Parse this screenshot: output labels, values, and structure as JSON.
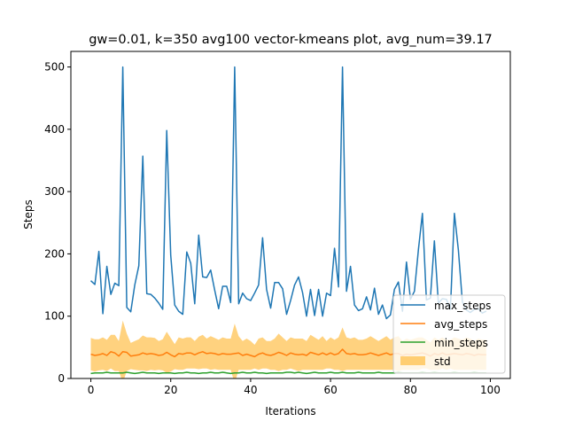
{
  "chart_data": {
    "type": "line",
    "title": "gw=0.01, k=350 avg100 vector-kmeans plot, avg_num=39.17",
    "xlabel": "Iterations",
    "ylabel": "Steps",
    "xlim": [
      -5,
      105
    ],
    "ylim": [
      0,
      525
    ],
    "xticks": [
      0,
      20,
      40,
      60,
      80,
      100
    ],
    "yticks": [
      0,
      100,
      200,
      300,
      400,
      500
    ],
    "grid": false,
    "legend_position": "bottom-right",
    "x": [
      0,
      1,
      2,
      3,
      4,
      5,
      6,
      7,
      8,
      9,
      10,
      11,
      12,
      13,
      14,
      15,
      16,
      17,
      18,
      19,
      20,
      21,
      22,
      23,
      24,
      25,
      26,
      27,
      28,
      29,
      30,
      31,
      32,
      33,
      34,
      35,
      36,
      37,
      38,
      39,
      40,
      41,
      42,
      43,
      44,
      45,
      46,
      47,
      48,
      49,
      50,
      51,
      52,
      53,
      54,
      55,
      56,
      57,
      58,
      59,
      60,
      61,
      62,
      63,
      64,
      65,
      66,
      67,
      68,
      69,
      70,
      71,
      72,
      73,
      74,
      75,
      76,
      77,
      78,
      79,
      80,
      81,
      82,
      83,
      84,
      85,
      86,
      87,
      88,
      89,
      90,
      91,
      92,
      93,
      94,
      95,
      96,
      97,
      98,
      99
    ],
    "series": [
      {
        "name": "max_steps",
        "color": "#1f77b4",
        "values": [
          157,
          151,
          204,
          104,
          180,
          135,
          153,
          149,
          500,
          114,
          107,
          150,
          181,
          357,
          136,
          135,
          129,
          121,
          111,
          398,
          198,
          118,
          108,
          103,
          203,
          185,
          120,
          230,
          163,
          162,
          174,
          142,
          112,
          148,
          148,
          122,
          500,
          120,
          137,
          128,
          125,
          137,
          150,
          226,
          143,
          113,
          154,
          154,
          144,
          103,
          125,
          150,
          163,
          138,
          100,
          143,
          101,
          143,
          100,
          137,
          133,
          209,
          147,
          500,
          140,
          180,
          118,
          109,
          112,
          131,
          110,
          145,
          103,
          118,
          96,
          102,
          143,
          155,
          108,
          187,
          127,
          140,
          207,
          265,
          126,
          129,
          221,
          121,
          128,
          127,
          111,
          265,
          206,
          123,
          110,
          106,
          111,
          112,
          105,
          108
        ]
      },
      {
        "name": "avg_steps",
        "color": "#ff7f0e",
        "values": [
          39,
          37,
          38,
          40,
          37,
          43,
          41,
          36,
          43,
          42,
          36,
          37,
          38,
          41,
          39,
          40,
          39,
          37,
          38,
          42,
          38,
          35,
          40,
          39,
          41,
          41,
          38,
          41,
          43,
          40,
          41,
          40,
          38,
          40,
          39,
          39,
          40,
          41,
          37,
          39,
          37,
          35,
          39,
          41,
          38,
          37,
          39,
          42,
          40,
          37,
          41,
          39,
          38,
          39,
          37,
          42,
          40,
          38,
          41,
          38,
          41,
          38,
          40,
          47,
          40,
          39,
          40,
          38,
          38,
          39,
          41,
          39,
          37,
          39,
          41,
          38,
          40,
          40,
          37,
          39,
          38,
          39,
          40,
          41,
          39,
          36,
          40,
          38,
          41,
          38,
          39,
          40,
          39,
          38,
          40,
          39,
          37,
          39,
          38,
          38
        ]
      },
      {
        "name": "min_steps",
        "color": "#2ca02c",
        "values": [
          8,
          9,
          9,
          9,
          10,
          9,
          9,
          9,
          9,
          10,
          9,
          8,
          9,
          10,
          9,
          9,
          9,
          8,
          9,
          9,
          9,
          8,
          9,
          9,
          10,
          9,
          9,
          8,
          9,
          9,
          10,
          9,
          9,
          10,
          9,
          8,
          9,
          9,
          10,
          9,
          9,
          10,
          9,
          9,
          8,
          9,
          9,
          9,
          9,
          10,
          10,
          9,
          10,
          9,
          8,
          9,
          10,
          9,
          9,
          9,
          10,
          9,
          9,
          10,
          9,
          9,
          9,
          10,
          9,
          9,
          9,
          9,
          10,
          9,
          9,
          9,
          9,
          10,
          9,
          9,
          9,
          9,
          9,
          10,
          9,
          9,
          10,
          9,
          9,
          9,
          9,
          10,
          9,
          9,
          9,
          9,
          10,
          9,
          9,
          9
        ]
      }
    ],
    "std_band": {
      "name": "std",
      "color": "#ffa500",
      "opacity": 0.5,
      "upper": [
        65,
        63,
        63,
        66,
        62,
        70,
        70,
        60,
        93,
        72,
        57,
        60,
        63,
        69,
        66,
        66,
        65,
        60,
        63,
        75,
        65,
        55,
        66,
        64,
        66,
        66,
        60,
        67,
        70,
        64,
        68,
        65,
        62,
        66,
        64,
        64,
        88,
        68,
        60,
        64,
        60,
        54,
        64,
        66,
        60,
        60,
        64,
        72,
        66,
        60,
        66,
        64,
        64,
        64,
        60,
        70,
        66,
        62,
        68,
        60,
        66,
        62,
        66,
        82,
        66,
        64,
        66,
        62,
        62,
        64,
        68,
        64,
        60,
        64,
        68,
        62,
        66,
        68,
        60,
        64,
        62,
        64,
        66,
        66,
        62,
        58,
        66,
        62,
        66,
        62,
        62,
        66,
        64,
        62,
        66,
        64,
        60,
        64,
        62,
        62
      ],
      "lower": [
        13,
        11,
        13,
        14,
        12,
        16,
        12,
        12,
        -7,
        12,
        15,
        14,
        13,
        13,
        12,
        14,
        13,
        14,
        13,
        9,
        11,
        15,
        14,
        14,
        16,
        16,
        16,
        15,
        16,
        16,
        14,
        15,
        14,
        14,
        14,
        14,
        -8,
        14,
        14,
        14,
        14,
        16,
        14,
        16,
        16,
        14,
        14,
        12,
        14,
        14,
        16,
        14,
        12,
        14,
        14,
        14,
        14,
        14,
        14,
        16,
        16,
        14,
        14,
        12,
        14,
        14,
        14,
        14,
        14,
        14,
        14,
        14,
        14,
        14,
        14,
        14,
        14,
        12,
        14,
        14,
        14,
        14,
        14,
        16,
        16,
        14,
        14,
        14,
        16,
        14,
        16,
        14,
        14,
        14,
        14,
        14,
        14,
        14,
        14,
        14
      ]
    }
  }
}
